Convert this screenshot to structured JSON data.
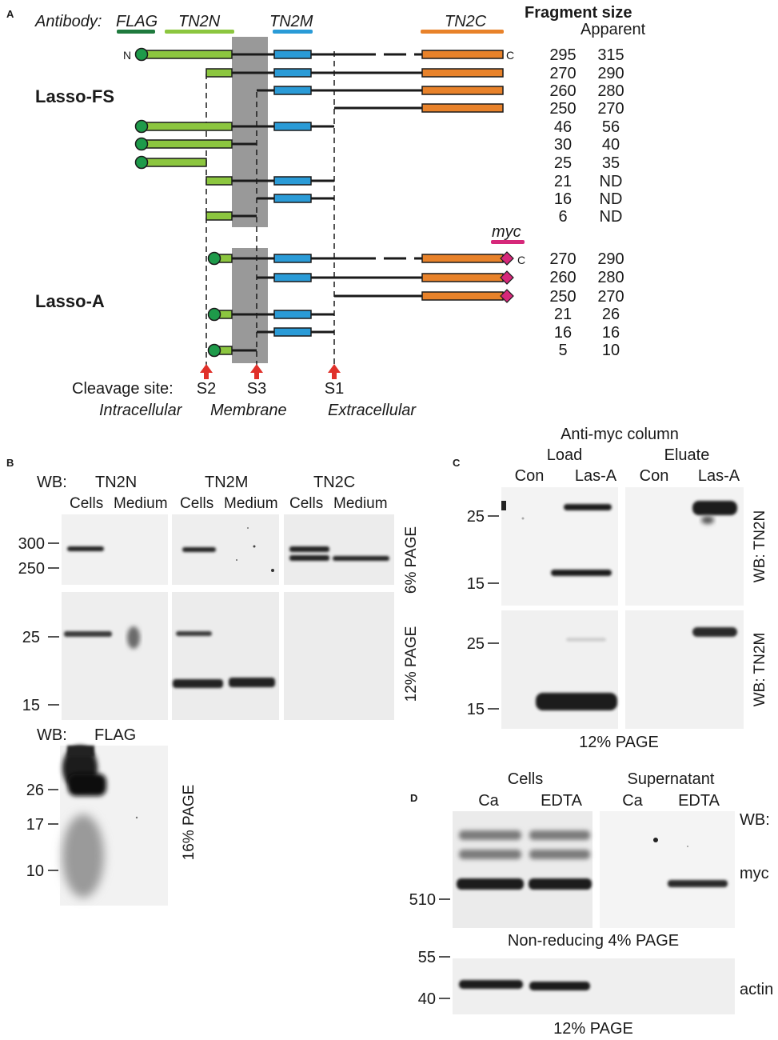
{
  "panel_a": {
    "label": "A",
    "antibody_label": "Antibody:",
    "antibodies": {
      "flag": {
        "name": "FLAG",
        "color": "#1f7a3e"
      },
      "tn2n": {
        "name": "TN2N",
        "color": "#8cc63f"
      },
      "tn2m": {
        "name": "TN2M",
        "color": "#2a9bd7"
      },
      "tn2c": {
        "name": "TN2C",
        "color": "#e8822a"
      },
      "myc": {
        "name": "myc",
        "color": "#d6287a"
      }
    },
    "header": {
      "fragment_size": "Fragment size",
      "apparent": "Apparent"
    },
    "terminus": {
      "n": "N",
      "c": "C"
    },
    "construct_fs": "Lasso-FS",
    "construct_a": "Lasso-A",
    "lasso_fs_rows": [
      {
        "size": "295",
        "apparent": "315"
      },
      {
        "size": "270",
        "apparent": "290"
      },
      {
        "size": "260",
        "apparent": "280"
      },
      {
        "size": "250",
        "apparent": "270"
      },
      {
        "size": "46",
        "apparent": "56"
      },
      {
        "size": "30",
        "apparent": "40"
      },
      {
        "size": "25",
        "apparent": "35"
      },
      {
        "size": "21",
        "apparent": "ND"
      },
      {
        "size": "16",
        "apparent": "ND"
      },
      {
        "size": "6",
        "apparent": "ND"
      }
    ],
    "lasso_a_rows": [
      {
        "size": "270",
        "apparent": "290"
      },
      {
        "size": "260",
        "apparent": "280"
      },
      {
        "size": "250",
        "apparent": "270"
      },
      {
        "size": "21",
        "apparent": "26"
      },
      {
        "size": "16",
        "apparent": "16"
      },
      {
        "size": "5",
        "apparent": "10"
      }
    ],
    "cleavage_label": "Cleavage site:",
    "cleavage_sites": [
      "S2",
      "S3",
      "S1"
    ],
    "arrow_color": "#e0302a",
    "membrane_color": "#999999",
    "regions": [
      "Intracellular",
      "Membrane",
      "Extracellular"
    ]
  },
  "panel_b": {
    "label": "B",
    "wb_label": "WB:",
    "antibodies": [
      "TN2N",
      "TN2M",
      "TN2C"
    ],
    "lane_labels": [
      "Cells",
      "Medium"
    ],
    "gel_top": "6% PAGE",
    "gel_bottom": "12% PAGE",
    "markers_top": [
      "300",
      "250"
    ],
    "markers_bottom": [
      "25",
      "15"
    ],
    "flag_wb_label": "WB:",
    "flag_antibody": "FLAG",
    "flag_gel": "16% PAGE",
    "markers_flag": [
      "26",
      "17",
      "10"
    ]
  },
  "panel_c": {
    "label": "C",
    "title": "Anti-myc column",
    "groups": [
      "Load",
      "Eluate"
    ],
    "lanes": [
      "Con",
      "Las-A",
      "Con",
      "Las-A"
    ],
    "markers": [
      "25",
      "15"
    ],
    "wb_top": "WB: TN2N",
    "wb_bottom": "WB: TN2M",
    "gel": "12% PAGE"
  },
  "panel_d": {
    "label": "D",
    "groups": [
      "Cells",
      "Supernatant"
    ],
    "lanes": [
      "Ca",
      "EDTA",
      "Ca",
      "EDTA"
    ],
    "wb_label": "WB:",
    "wb_top": "myc",
    "wb_bottom": "actin",
    "marker_top": "510",
    "gel_top": "Non-reducing 4% PAGE",
    "markers_bottom": [
      "55",
      "40"
    ],
    "gel_bottom": "12% PAGE"
  }
}
